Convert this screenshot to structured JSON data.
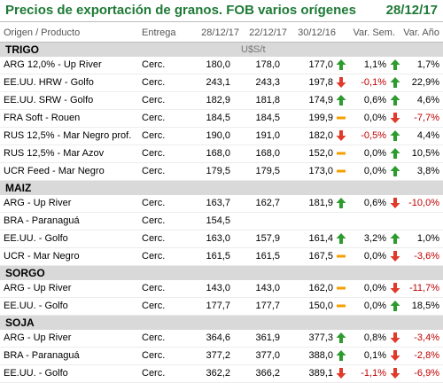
{
  "title": "Precios de exportación de granos. FOB varios orígenes",
  "date": "28/12/17",
  "colors": {
    "accent": "#1e7a36",
    "up": "#2e9b2e",
    "down": "#e03a2a",
    "flat": "#f5a000",
    "negative": "#c00000"
  },
  "columns": {
    "origin": "Origen / Producto",
    "delivery": "Entrega",
    "d1": "28/12/17",
    "d2": "22/12/17",
    "d3": "30/12/16",
    "week": "Var. Sem.",
    "year": "Var. Año"
  },
  "sections": [
    {
      "name": "TRIGO",
      "unit": "U$S/t",
      "rows": [
        {
          "name": "ARG 12,0% - Up River",
          "delivery": "Cerc.",
          "v1": "180,0",
          "v2": "178,0",
          "v3": "177,0",
          "ind1": "up",
          "week": "1,1%",
          "ind2": "up",
          "year": "1,7%"
        },
        {
          "name": "EE.UU. HRW - Golfo",
          "delivery": "Cerc.",
          "v1": "243,1",
          "v2": "243,3",
          "v3": "197,8",
          "ind1": "down",
          "week": "-0,1%",
          "ind2": "up",
          "year": "22,9%"
        },
        {
          "name": "EE.UU. SRW - Golfo",
          "delivery": "Cerc.",
          "v1": "182,9",
          "v2": "181,8",
          "v3": "174,9",
          "ind1": "up",
          "week": "0,6%",
          "ind2": "up",
          "year": "4,6%"
        },
        {
          "name": "FRA Soft - Rouen",
          "delivery": "Cerc.",
          "v1": "184,5",
          "v2": "184,5",
          "v3": "199,9",
          "ind1": "flat",
          "week": "0,0%",
          "ind2": "down",
          "year": "-7,7%"
        },
        {
          "name": "RUS 12,5% - Mar Negro prof.",
          "delivery": "Cerc.",
          "v1": "190,0",
          "v2": "191,0",
          "v3": "182,0",
          "ind1": "down",
          "week": "-0,5%",
          "ind2": "up",
          "year": "4,4%"
        },
        {
          "name": "RUS 12,5% - Mar Azov",
          "delivery": "Cerc.",
          "v1": "168,0",
          "v2": "168,0",
          "v3": "152,0",
          "ind1": "flat",
          "week": "0,0%",
          "ind2": "up",
          "year": "10,5%"
        },
        {
          "name": "UCR Feed - Mar Negro",
          "delivery": "Cerc.",
          "v1": "179,5",
          "v2": "179,5",
          "v3": "173,0",
          "ind1": "flat",
          "week": "0,0%",
          "ind2": "up",
          "year": "3,8%"
        }
      ]
    },
    {
      "name": "MAIZ",
      "rows": [
        {
          "name": "ARG - Up River",
          "delivery": "Cerc.",
          "v1": "163,7",
          "v2": "162,7",
          "v3": "181,9",
          "ind1": "up",
          "week": "0,6%",
          "ind2": "down",
          "year": "-10,0%"
        },
        {
          "name": "BRA - Paranaguá",
          "delivery": "Cerc.",
          "v1": "154,5",
          "v2": "",
          "v3": "",
          "ind1": "",
          "week": "",
          "ind2": "",
          "year": ""
        },
        {
          "name": "EE.UU. - Golfo",
          "delivery": "Cerc.",
          "v1": "163,0",
          "v2": "157,9",
          "v3": "161,4",
          "ind1": "up",
          "week": "3,2%",
          "ind2": "up",
          "year": "1,0%"
        },
        {
          "name": "UCR - Mar Negro",
          "delivery": "Cerc.",
          "v1": "161,5",
          "v2": "161,5",
          "v3": "167,5",
          "ind1": "flat",
          "week": "0,0%",
          "ind2": "down",
          "year": "-3,6%"
        }
      ]
    },
    {
      "name": "SORGO",
      "rows": [
        {
          "name": "ARG - Up River",
          "delivery": "Cerc.",
          "v1": "143,0",
          "v2": "143,0",
          "v3": "162,0",
          "ind1": "flat",
          "week": "0,0%",
          "ind2": "down",
          "year": "-11,7%"
        },
        {
          "name": "EE.UU. - Golfo",
          "delivery": "Cerc.",
          "v1": "177,7",
          "v2": "177,7",
          "v3": "150,0",
          "ind1": "flat",
          "week": "0,0%",
          "ind2": "up",
          "year": "18,5%"
        }
      ]
    },
    {
      "name": "SOJA",
      "rows": [
        {
          "name": "ARG - Up River",
          "delivery": "Cerc.",
          "v1": "364,6",
          "v2": "361,9",
          "v3": "377,3",
          "ind1": "up",
          "week": "0,8%",
          "ind2": "down",
          "year": "-3,4%"
        },
        {
          "name": "BRA - Paranaguá",
          "delivery": "Cerc.",
          "v1": "377,2",
          "v2": "377,0",
          "v3": "388,0",
          "ind1": "up",
          "week": "0,1%",
          "ind2": "down",
          "year": "-2,8%"
        },
        {
          "name": "EE.UU. - Golfo",
          "delivery": "Cerc.",
          "v1": "362,2",
          "v2": "366,2",
          "v3": "389,1",
          "ind1": "down",
          "week": "-1,1%",
          "ind2": "down",
          "year": "-6,9%"
        }
      ]
    }
  ]
}
